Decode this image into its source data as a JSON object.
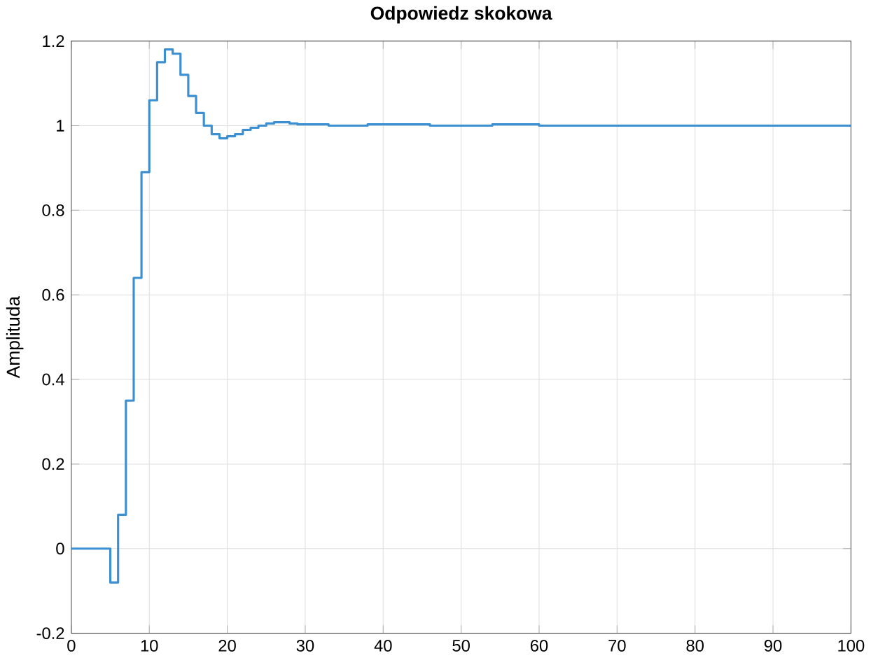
{
  "chart_data": {
    "type": "step",
    "title": "Odpowiedz skokowa",
    "ylabel": "Amplituda",
    "x": [
      0,
      5,
      6,
      7,
      8,
      9,
      10,
      11,
      12,
      13,
      14,
      15,
      16,
      17,
      18,
      19,
      20,
      21,
      22,
      23,
      24,
      25,
      26,
      27,
      28,
      29,
      30,
      33,
      38,
      46,
      54,
      60,
      100
    ],
    "series": [
      {
        "color": "#3c8fd0",
        "values": [
          0,
          -0.08,
          0.08,
          0.35,
          0.64,
          0.89,
          1.06,
          1.15,
          1.18,
          1.17,
          1.12,
          1.07,
          1.03,
          1.0,
          0.98,
          0.97,
          0.975,
          0.98,
          0.99,
          0.995,
          1.0,
          1.005,
          1.008,
          1.008,
          1.005,
          1.003,
          1.003,
          1.0,
          1.003,
          1.0,
          1.003,
          1.0,
          1.0
        ]
      }
    ],
    "xlim": [
      0,
      100
    ],
    "ylim": [
      -0.2,
      1.2
    ],
    "xticks": [
      0,
      10,
      20,
      30,
      40,
      50,
      60,
      70,
      80,
      90,
      100
    ],
    "yticks": [
      -0.2,
      0,
      0.2,
      0.4,
      0.6,
      0.8,
      1,
      1.2
    ],
    "grid": true,
    "marker": "none",
    "line_style": "solid"
  }
}
